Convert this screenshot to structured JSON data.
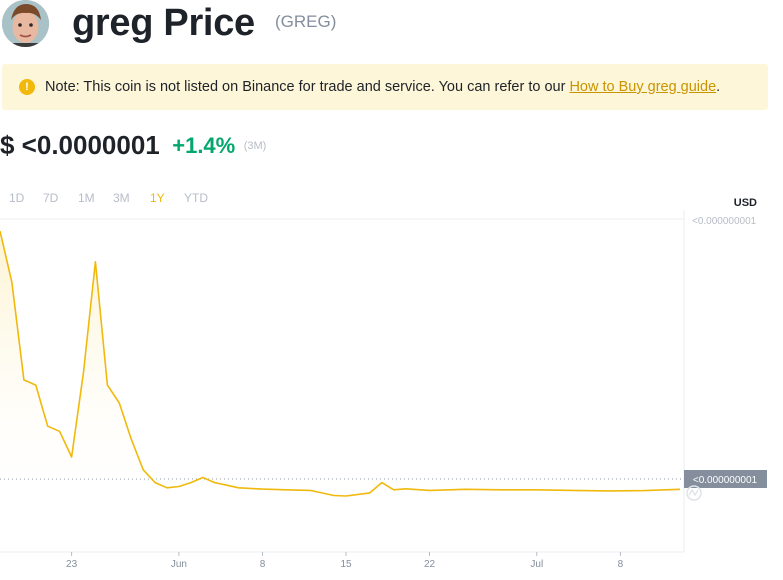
{
  "header": {
    "title": "greg Price",
    "symbol": "(GREG)"
  },
  "notice": {
    "text_before": "Note: This coin is not listed on Binance for trade and service. You can refer to our ",
    "link_text": "How to Buy greg guide",
    "text_after": "."
  },
  "price": {
    "value": "$ <0.0000001",
    "change": "+1.4%",
    "period": "(3M)"
  },
  "range_tabs": [
    "1D",
    "7D",
    "1M",
    "3M",
    "1Y",
    "YTD"
  ],
  "active_tab": "1Y",
  "colors": {
    "accent": "#f0b90b",
    "positive": "#03a66d",
    "line": "#f0b90b",
    "fill": "#fdf3d0"
  },
  "chart_data": {
    "type": "area",
    "currency_label": "USD",
    "y_tick_labels": [
      "<0.000000001"
    ],
    "current_value_label": "<0.000000001",
    "x_tick_labels": [
      "23",
      "Jun",
      "8",
      "15",
      "22",
      "Jul",
      "8"
    ],
    "x": [
      "May 17",
      "May 18",
      "May 19",
      "May 20",
      "May 21",
      "May 22",
      "May 23",
      "May 24",
      "May 25",
      "May 26",
      "May 27",
      "May 28",
      "May 29",
      "May 30",
      "May 31",
      "Jun 1",
      "Jun 2",
      "Jun 3",
      "Jun 4",
      "Jun 5",
      "Jun 6",
      "Jun 8",
      "Jun 10",
      "Jun 12",
      "Jun 14",
      "Jun 15",
      "Jun 17",
      "Jun 18",
      "Jun 19",
      "Jun 20",
      "Jun 22",
      "Jun 25",
      "Jun 28",
      "Jul 1",
      "Jul 4",
      "Jul 7",
      "Jul 10",
      "Jul 13"
    ],
    "values": [
      100,
      80,
      42,
      40,
      24,
      22,
      12,
      45,
      88,
      40,
      33,
      19,
      7,
      2,
      0,
      0.5,
      2,
      4,
      2,
      1,
      0,
      -0.5,
      -0.8,
      -1,
      -3,
      -3.2,
      -2,
      2,
      -0.8,
      -0.4,
      -1,
      -0.6,
      -0.8,
      -0.8,
      -1,
      -1.2,
      -1.1,
      -0.6
    ],
    "grid": false,
    "legend": "none"
  }
}
